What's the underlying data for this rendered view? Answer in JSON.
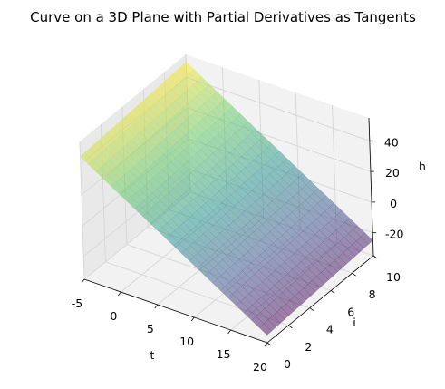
{
  "chart_data": {
    "type": "surface3d",
    "title": "Curve on a 3D Plane with Partial Derivatives as Tangents",
    "xlabel": "t",
    "ylabel": "i",
    "zlabel": "h",
    "xlim": [
      -5,
      20
    ],
    "ylim": [
      0,
      10
    ],
    "zlim": [
      -35,
      55
    ],
    "xticks": [
      "-5",
      "0",
      "5",
      "10",
      "15",
      "20"
    ],
    "xtick_values": [
      -5,
      0,
      5,
      10,
      15,
      20
    ],
    "yticks": [
      "0",
      "2",
      "4",
      "6",
      "8",
      "10"
    ],
    "ytick_values": [
      0,
      2,
      4,
      6,
      8,
      10
    ],
    "zticks": [
      "-20",
      "0",
      "20",
      "40"
    ],
    "ztick_values": [
      -20,
      0,
      20,
      40
    ],
    "grid": true,
    "colormap": "viridis",
    "alpha": 0.5,
    "surface_corners": [
      {
        "t": -5,
        "i": 0,
        "h": 45
      },
      {
        "t": 20,
        "i": 0,
        "h": -30
      },
      {
        "t": -5,
        "i": 10,
        "h": 50
      },
      {
        "t": 20,
        "i": 10,
        "h": -25
      }
    ],
    "colors": {
      "pane": "#f2f2f2",
      "pane_side": "#e9e9e9",
      "grid": "#d6d6d6"
    }
  }
}
